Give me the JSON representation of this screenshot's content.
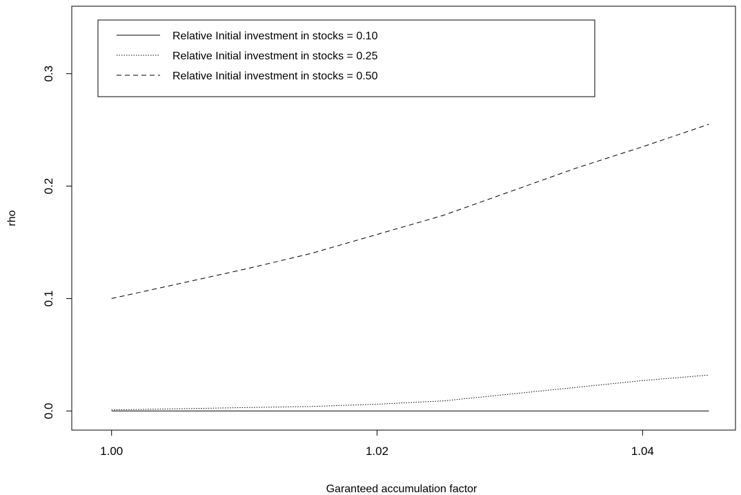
{
  "chart_data": {
    "type": "line",
    "title": "",
    "xlabel": "Garanteed accumulation factor",
    "ylabel": "rho",
    "xlim": [
      0.997,
      1.047
    ],
    "ylim": [
      -0.017,
      0.36
    ],
    "xticks": [
      "1.00",
      "1.02",
      "1.04"
    ],
    "yticks": [
      "0.0",
      "0.1",
      "0.2",
      "0.3"
    ],
    "grid": false,
    "legend_position": "top-left",
    "x": [
      1.0,
      1.005,
      1.01,
      1.015,
      1.02,
      1.025,
      1.03,
      1.035,
      1.04,
      1.045
    ],
    "series": [
      {
        "name": "Relative Initial investment in stocks = 0.10",
        "linestyle": "solid",
        "values": [
          0.0,
          0.0,
          0.0,
          0.0,
          0.0,
          0.0,
          0.0,
          0.0,
          0.0,
          0.0
        ]
      },
      {
        "name": "Relative Initial investment in stocks = 0.25",
        "linestyle": "dotted",
        "values": [
          0.001,
          0.002,
          0.003,
          0.004,
          0.006,
          0.009,
          0.015,
          0.021,
          0.027,
          0.032
        ]
      },
      {
        "name": "Relative Initial investment in stocks = 0.50",
        "linestyle": "dashed",
        "values": [
          0.1,
          0.113,
          0.126,
          0.14,
          0.157,
          0.174,
          0.195,
          0.216,
          0.235,
          0.255
        ]
      }
    ],
    "colors": {
      "line": "#000000",
      "background": "#ffffff"
    }
  }
}
